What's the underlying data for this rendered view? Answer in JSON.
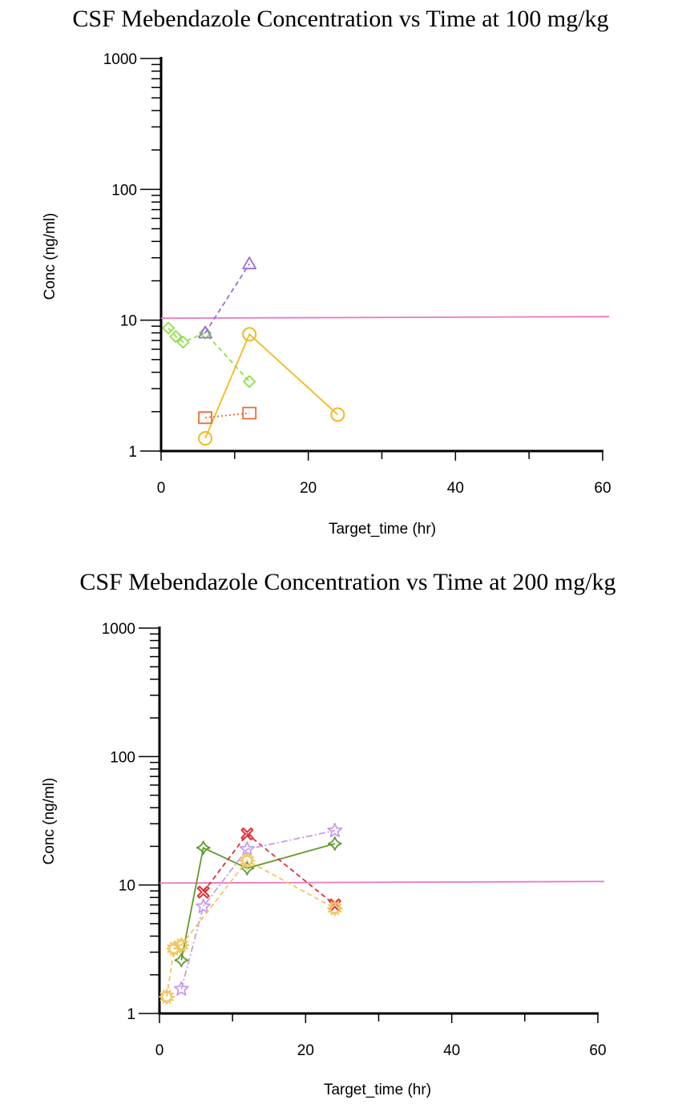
{
  "chart_data": [
    {
      "type": "line",
      "title": "CSF Mebendazole Concentration vs Time at 100 mg/kg",
      "xlabel": "Target_time (hr)",
      "ylabel": "Conc (ng/ml)",
      "xlim": [
        0,
        60
      ],
      "ylim": [
        1,
        1000
      ],
      "yscale": "log",
      "xticks": [
        "0",
        "20",
        "40",
        "60"
      ],
      "yticks": [
        "1",
        "10",
        "100",
        "1000"
      ],
      "grid": false,
      "legend": "none",
      "reference_line": {
        "y": 10.5,
        "color": "#e879c5"
      },
      "series": [
        {
          "marker": "diamond",
          "color": "#8fe04a",
          "dash": "6 4",
          "x": [
            1,
            2,
            3,
            6,
            12
          ],
          "y": [
            8.7,
            7.5,
            6.8,
            8.0,
            3.4
          ]
        },
        {
          "marker": "triangle",
          "color": "#9b6be0",
          "dash": "6 4",
          "x": [
            6,
            12
          ],
          "y": [
            8.0,
            27
          ]
        },
        {
          "marker": "circle",
          "color": "#f2b81e",
          "dash": "",
          "x": [
            6,
            12,
            24
          ],
          "y": [
            1.25,
            7.8,
            1.9
          ]
        },
        {
          "marker": "square",
          "color": "#ef6a2d",
          "dash": "2 3",
          "x": [
            6,
            12
          ],
          "y": [
            1.8,
            1.95
          ]
        }
      ]
    },
    {
      "type": "line",
      "title": "CSF Mebendazole Concentration vs Time at 200 mg/kg",
      "xlabel": "Target_time (hr)",
      "ylabel": "Conc (ng/ml)",
      "xlim": [
        0,
        60
      ],
      "ylim": [
        1,
        1000
      ],
      "yscale": "log",
      "xticks": [
        "0",
        "20",
        "40",
        "60"
      ],
      "yticks": [
        "1",
        "10",
        "100",
        "1000"
      ],
      "grid": false,
      "legend": "none",
      "reference_line": {
        "y": 10.5,
        "color": "#e879c5"
      },
      "series": [
        {
          "marker": "diamond4",
          "color": "#5f9a2c",
          "dash": "",
          "x": [
            3,
            6,
            12,
            24
          ],
          "y": [
            2.6,
            19.5,
            13.5,
            21
          ]
        },
        {
          "marker": "x",
          "color": "#e0303a",
          "dash": "6 4",
          "x": [
            6,
            12,
            24
          ],
          "y": [
            8.8,
            25,
            7.0
          ]
        },
        {
          "marker": "star",
          "color": "#c79be8",
          "dash": "8 3 2 3",
          "x": [
            3,
            6,
            12,
            24
          ],
          "y": [
            1.55,
            6.8,
            19,
            26.5
          ]
        },
        {
          "marker": "burst",
          "color": "#f2c660",
          "dash": "6 4",
          "x": [
            1,
            2,
            3,
            12,
            24
          ],
          "y": [
            1.35,
            3.2,
            3.4,
            15.5,
            6.6
          ]
        }
      ]
    }
  ]
}
